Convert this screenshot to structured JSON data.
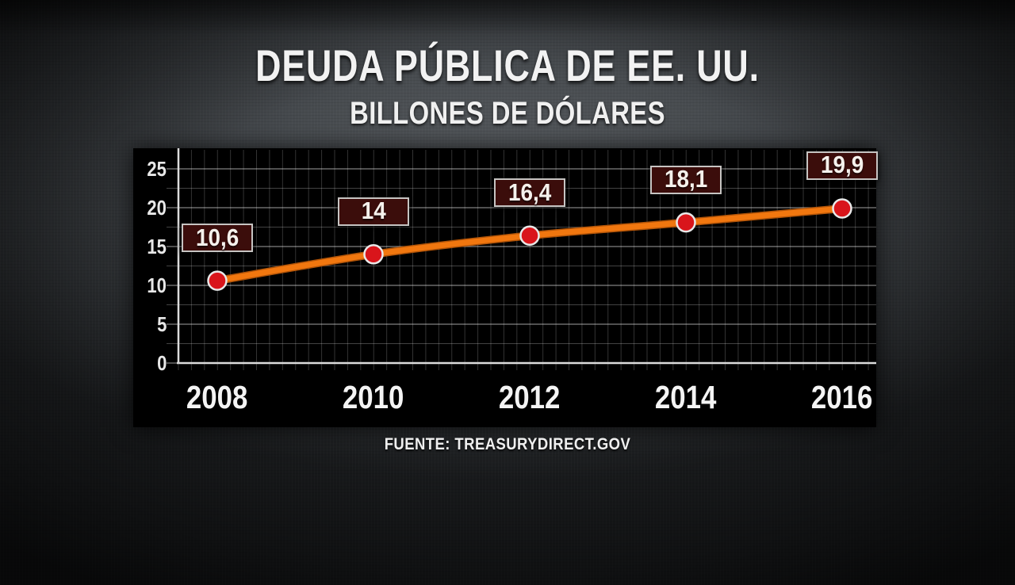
{
  "title": "DEUDA PÚBLICA DE EE. UU.",
  "subtitle": "BILLONES DE DÓLARES",
  "source": "FUENTE: TREASURYDIRECT.GOV",
  "chart_data": {
    "type": "line",
    "x": [
      2008,
      2010,
      2012,
      2014,
      2016
    ],
    "values": [
      10.6,
      14,
      16.4,
      18.1,
      19.9
    ],
    "point_labels": [
      "10,6",
      "14",
      "16,4",
      "18,1",
      "19,9"
    ],
    "x_tick_labels": [
      "2008",
      "2010",
      "2012",
      "2014",
      "2016"
    ],
    "y_ticks": [
      0,
      5,
      10,
      15,
      20,
      25
    ],
    "y_minor_step": 2.5,
    "ylim": [
      0,
      27.6
    ],
    "xlabel": "",
    "ylabel": "",
    "grid": true,
    "legend": false,
    "colors": {
      "line": "#f1770f",
      "line_edge": "#b25408",
      "marker": "#d9151b",
      "marker_ring": "#e8e8e8",
      "label_box_bg": "#3b0d0b",
      "label_box_border": "#c6c4c2",
      "axis": "#dcdcdc",
      "grid_major": "rgba(255,255,255,0.5)",
      "grid_minor": "rgba(255,255,255,0.26)",
      "grid_vertical": "rgba(255,255,255,0.2)",
      "panel_bg": "#000000",
      "text": "#f2f2f2"
    }
  }
}
